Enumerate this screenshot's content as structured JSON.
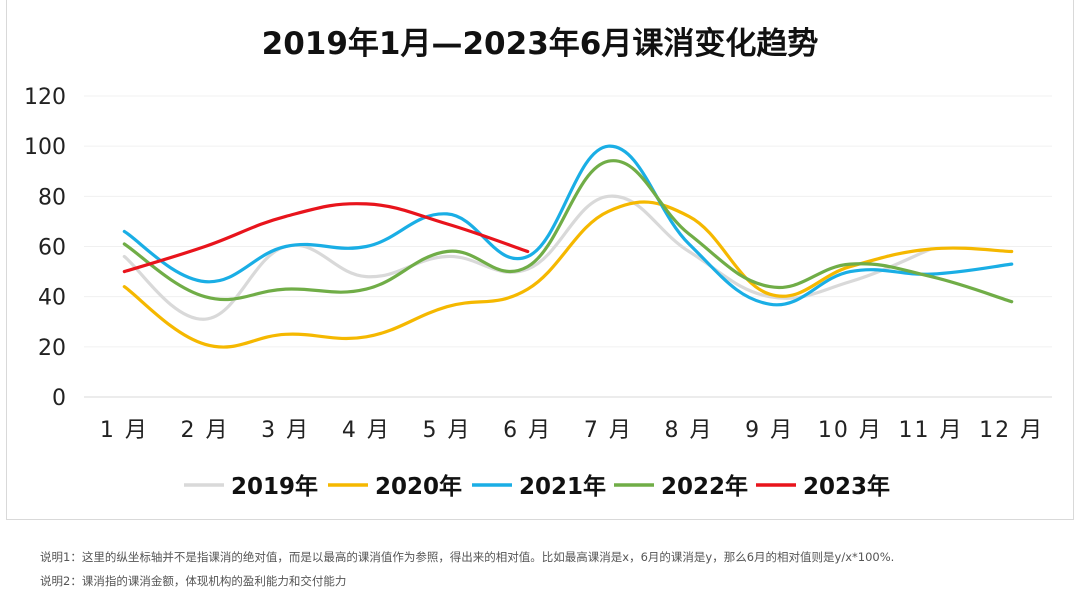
{
  "chart_data": {
    "type": "line",
    "title": "2019年1月—2023年6月课消变化趋势",
    "categories": [
      "1 月",
      "2 月",
      "3 月",
      "4 月",
      "5 月",
      "6 月",
      "7 月",
      "8 月",
      "9 月",
      "10 月",
      "11 月",
      "12 月"
    ],
    "ylim": [
      0,
      120
    ],
    "yticks": [
      0,
      20,
      40,
      60,
      80,
      100,
      120
    ],
    "grid": true,
    "legend_position": "bottom",
    "series": [
      {
        "name": "2019年",
        "color": "#d9d9d9",
        "values": [
          56,
          31,
          60,
          48,
          56,
          51,
          80,
          58,
          40,
          46,
          59,
          null
        ]
      },
      {
        "name": "2020年",
        "color": "#f5b800",
        "values": [
          44,
          21,
          25,
          24,
          36,
          43,
          74,
          72,
          41,
          52,
          59,
          58
        ]
      },
      {
        "name": "2021年",
        "color": "#1aaee5",
        "values": [
          66,
          46,
          60,
          60,
          73,
          56,
          100,
          61,
          37,
          50,
          49,
          53
        ]
      },
      {
        "name": "2022年",
        "color": "#70ad47",
        "values": [
          61,
          40,
          43,
          43,
          58,
          52,
          94,
          65,
          44,
          53,
          48,
          38
        ]
      },
      {
        "name": "2023年",
        "color": "#e8141c",
        "values": [
          50,
          60,
          72,
          77,
          69,
          58,
          null,
          null,
          null,
          null,
          null,
          null
        ]
      }
    ]
  },
  "notes": {
    "note1": "说明1：这里的纵坐标轴并不是指课消的绝对值，而是以最高的课消值作为参照，得出来的相对值。比如最高课消是x，6月的课消是y，那么6月的相对值则是y/x*100%.",
    "note2": "说明2：课消指的课消金额，体现机构的盈利能力和交付能力"
  }
}
